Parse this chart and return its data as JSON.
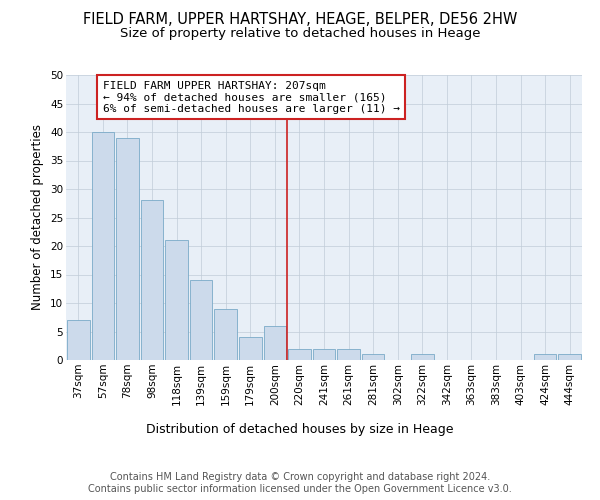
{
  "title": "FIELD FARM, UPPER HARTSHAY, HEAGE, BELPER, DE56 2HW",
  "subtitle": "Size of property relative to detached houses in Heage",
  "xlabel": "Distribution of detached houses by size in Heage",
  "ylabel": "Number of detached properties",
  "bar_labels": [
    "37sqm",
    "57sqm",
    "78sqm",
    "98sqm",
    "118sqm",
    "139sqm",
    "159sqm",
    "179sqm",
    "200sqm",
    "220sqm",
    "241sqm",
    "261sqm",
    "281sqm",
    "302sqm",
    "322sqm",
    "342sqm",
    "363sqm",
    "383sqm",
    "403sqm",
    "424sqm",
    "444sqm"
  ],
  "bar_values": [
    7,
    40,
    39,
    28,
    21,
    14,
    9,
    4,
    6,
    2,
    2,
    2,
    1,
    0,
    1,
    0,
    0,
    0,
    0,
    1,
    1
  ],
  "bar_color": "#ccdaeb",
  "bar_edgecolor": "#7aaac8",
  "bg_color": "#e8eff7",
  "vline_x": 8.5,
  "annotation_text": "FIELD FARM UPPER HARTSHAY: 207sqm\n← 94% of detached houses are smaller (165)\n6% of semi-detached houses are larger (11) →",
  "annotation_box_facecolor": "#ffffff",
  "annotation_box_edgecolor": "#cc2222",
  "vline_color": "#cc2222",
  "ylim": [
    0,
    50
  ],
  "yticks": [
    0,
    5,
    10,
    15,
    20,
    25,
    30,
    35,
    40,
    45,
    50
  ],
  "footnote": "Contains HM Land Registry data © Crown copyright and database right 2024.\nContains public sector information licensed under the Open Government Licence v3.0.",
  "title_fontsize": 10.5,
  "subtitle_fontsize": 9.5,
  "xlabel_fontsize": 9,
  "ylabel_fontsize": 8.5,
  "tick_fontsize": 7.5,
  "annotation_fontsize": 8,
  "footnote_fontsize": 7
}
